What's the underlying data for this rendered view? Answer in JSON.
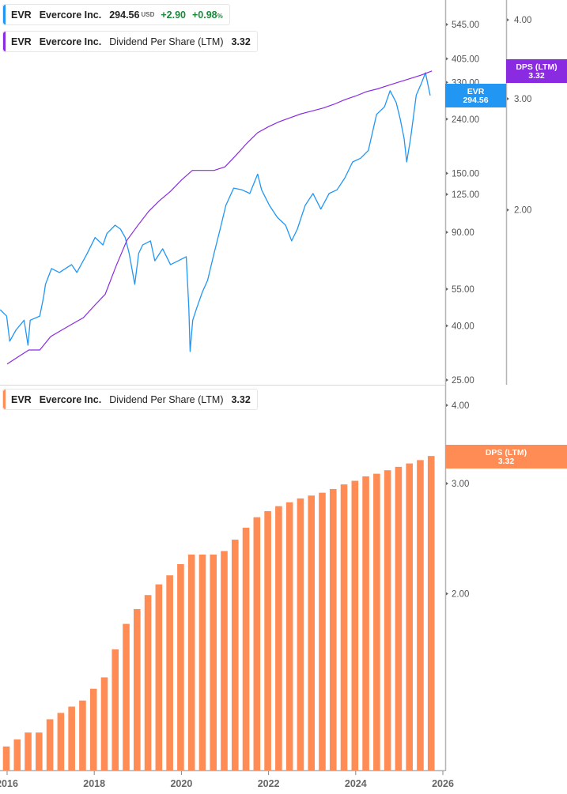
{
  "legends": {
    "price": {
      "ticker": "EVR",
      "name": "Evercore Inc.",
      "price": "294.56",
      "currency": "USD",
      "change": "+2.90",
      "change_pct": "+0.98",
      "pct_sign": "%",
      "color": "#2196f3"
    },
    "dps_top": {
      "ticker": "EVR",
      "name": "Evercore Inc.",
      "metric": "Dividend Per Share (LTM)",
      "value": "3.32",
      "color": "#8a2be2"
    },
    "dps_bottom": {
      "ticker": "EVR",
      "name": "Evercore Inc.",
      "metric": "Dividend Per Share (LTM)",
      "value": "3.32",
      "color": "#ff8c55"
    }
  },
  "chart_data": [
    {
      "type": "line",
      "panel": "top",
      "scale": "log",
      "price_axis": {
        "ticks": [
          "545.00",
          "405.00",
          "330.00",
          "240.00",
          "150.00",
          "125.00",
          "90.00",
          "55.00",
          "40.00",
          "25.00"
        ],
        "range": [
          25,
          560
        ]
      },
      "dps_axis": {
        "ticks": [
          "4.00",
          "3.00",
          "2.00"
        ]
      },
      "series": [
        {
          "name": "EVR",
          "color": "#2196f3",
          "tag": {
            "label": "EVR",
            "value": "294.56"
          },
          "x": [
            2015.84,
            2015.99,
            2016.06,
            2016.2,
            2016.39,
            2016.48,
            2016.53,
            2016.75,
            2016.84,
            2016.88,
            2017.02,
            2017.2,
            2017.48,
            2017.6,
            2017.84,
            2018.02,
            2018.2,
            2018.29,
            2018.48,
            2018.6,
            2018.71,
            2018.8,
            2018.93,
            2019.02,
            2019.11,
            2019.29,
            2019.39,
            2019.57,
            2019.75,
            2019.93,
            2020.11,
            2020.17,
            2020.2,
            2020.26,
            2020.35,
            2020.48,
            2020.6,
            2020.75,
            2020.89,
            2021.02,
            2021.2,
            2021.39,
            2021.57,
            2021.75,
            2021.84,
            2022.02,
            2022.2,
            2022.39,
            2022.53,
            2022.66,
            2022.84,
            2023.02,
            2023.2,
            2023.39,
            2023.57,
            2023.75,
            2023.93,
            2024.11,
            2024.29,
            2024.48,
            2024.66,
            2024.79,
            2024.93,
            2025.02,
            2025.11,
            2025.17,
            2025.26,
            2025.39,
            2025.51,
            2025.6,
            2025.66,
            2025.71
          ],
          "y": [
            46,
            43.5,
            35,
            38.5,
            42,
            33.8,
            42,
            43.5,
            51.7,
            57.3,
            65.7,
            63.5,
            68,
            63.5,
            75,
            86,
            80.6,
            89,
            95.7,
            92.5,
            86,
            75,
            57.3,
            75,
            80.6,
            83.5,
            70.3,
            78,
            68,
            70.3,
            72.8,
            46.6,
            32,
            42,
            46.6,
            53.5,
            59.3,
            75,
            92.5,
            113.6,
            132,
            130,
            126,
            149,
            130,
            113.6,
            102.5,
            95.7,
            83.5,
            92.5,
            113.6,
            126,
            110,
            126,
            130,
            144,
            165.5,
            171,
            183,
            250,
            267,
            307,
            277,
            241,
            203,
            165.5,
            203,
            296,
            328,
            359,
            322,
            294.56
          ]
        },
        {
          "name": "DPS (LTM)",
          "color": "#8a2be2",
          "axis": "dps",
          "tag": {
            "label": "DPS (LTM)",
            "value": "3.32"
          }
        }
      ]
    },
    {
      "type": "bar",
      "panel": "bottom",
      "scale": "log",
      "y_ticks": [
        "4.00",
        "3.00",
        "2.00"
      ],
      "x_ticks": [
        "2016",
        "2018",
        "2020",
        "2022",
        "2024",
        "2026"
      ],
      "xlim": [
        2015.84,
        2026.1
      ],
      "color": "#ff8c55",
      "tag": {
        "label": "DPS (LTM)",
        "value": "3.32"
      },
      "x": [
        2016.0,
        2016.25,
        2016.5,
        2016.75,
        2017.0,
        2017.25,
        2017.5,
        2017.75,
        2018.0,
        2018.25,
        2018.5,
        2018.75,
        2019.0,
        2019.25,
        2019.5,
        2019.75,
        2020.0,
        2020.25,
        2020.5,
        2020.75,
        2021.0,
        2021.25,
        2021.5,
        2021.75,
        2022.0,
        2022.25,
        2022.5,
        2022.75,
        2023.0,
        2023.25,
        2023.5,
        2023.75,
        2024.0,
        2024.25,
        2024.5,
        2024.75,
        2025.0,
        2025.25,
        2025.5,
        2025.75
      ],
      "values": [
        1.14,
        1.17,
        1.2,
        1.2,
        1.26,
        1.29,
        1.32,
        1.35,
        1.41,
        1.47,
        1.63,
        1.79,
        1.89,
        1.99,
        2.07,
        2.14,
        2.23,
        2.31,
        2.31,
        2.31,
        2.34,
        2.44,
        2.55,
        2.65,
        2.71,
        2.76,
        2.8,
        2.84,
        2.87,
        2.9,
        2.94,
        2.99,
        3.03,
        3.08,
        3.11,
        3.15,
        3.19,
        3.23,
        3.27,
        3.32
      ]
    }
  ]
}
